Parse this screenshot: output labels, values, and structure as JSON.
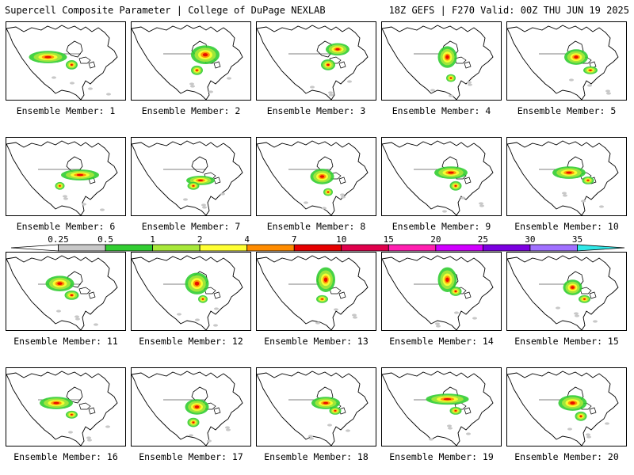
{
  "header": {
    "left": "Supercell Composite Parameter | College of DuPage NEXLAB",
    "right": "18Z GEFS | F270 Valid: 00Z THU JUN 19 2025"
  },
  "colorbar": {
    "ticks": [
      "0.25",
      "0.5",
      "1",
      "2",
      "4",
      "7",
      "10",
      "15",
      "20",
      "25",
      "30",
      "35"
    ],
    "colors": [
      "#ffffff",
      "#c8c8c8",
      "#32cd32",
      "#a8e83a",
      "#ffff33",
      "#ff8c00",
      "#e60000",
      "#e0004c",
      "#ff1fb0",
      "#d000ff",
      "#7b00e0",
      "#a070ff",
      "#30e8e8"
    ]
  },
  "members": [
    {
      "label": "Ensemble Member: 1"
    },
    {
      "label": "Ensemble Member: 2"
    },
    {
      "label": "Ensemble Member: 3"
    },
    {
      "label": "Ensemble Member: 4"
    },
    {
      "label": "Ensemble Member: 5"
    },
    {
      "label": "Ensemble Member: 6"
    },
    {
      "label": "Ensemble Member: 7"
    },
    {
      "label": "Ensemble Member: 8"
    },
    {
      "label": "Ensemble Member: 9"
    },
    {
      "label": "Ensemble Member: 10"
    },
    {
      "label": "Ensemble Member: 11"
    },
    {
      "label": "Ensemble Member: 12"
    },
    {
      "label": "Ensemble Member: 13"
    },
    {
      "label": "Ensemble Member: 14"
    },
    {
      "label": "Ensemble Member: 15"
    },
    {
      "label": "Ensemble Member: 16"
    },
    {
      "label": "Ensemble Member: 17"
    },
    {
      "label": "Ensemble Member: 18"
    },
    {
      "label": "Ensemble Member: 19"
    },
    {
      "label": "Ensemble Member: 20"
    }
  ]
}
